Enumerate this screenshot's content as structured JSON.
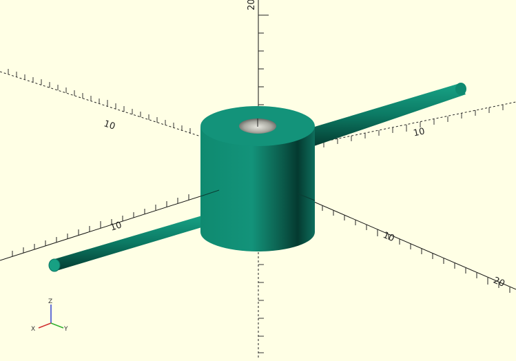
{
  "viewport": {
    "background": "#ffffe5",
    "model_color": "#13937a",
    "axis_color": "#111111",
    "tick_labels": {
      "z_top": "20",
      "left_upper": "10",
      "right_upper": "10",
      "left_lower": "10",
      "right_lower": "10",
      "right_far": "20"
    }
  },
  "axes_indicator": {
    "x_label": "X",
    "y_label": "Y",
    "z_label": "Z",
    "x_color": "#d03030",
    "y_color": "#30b030",
    "z_color": "#3040d0"
  }
}
